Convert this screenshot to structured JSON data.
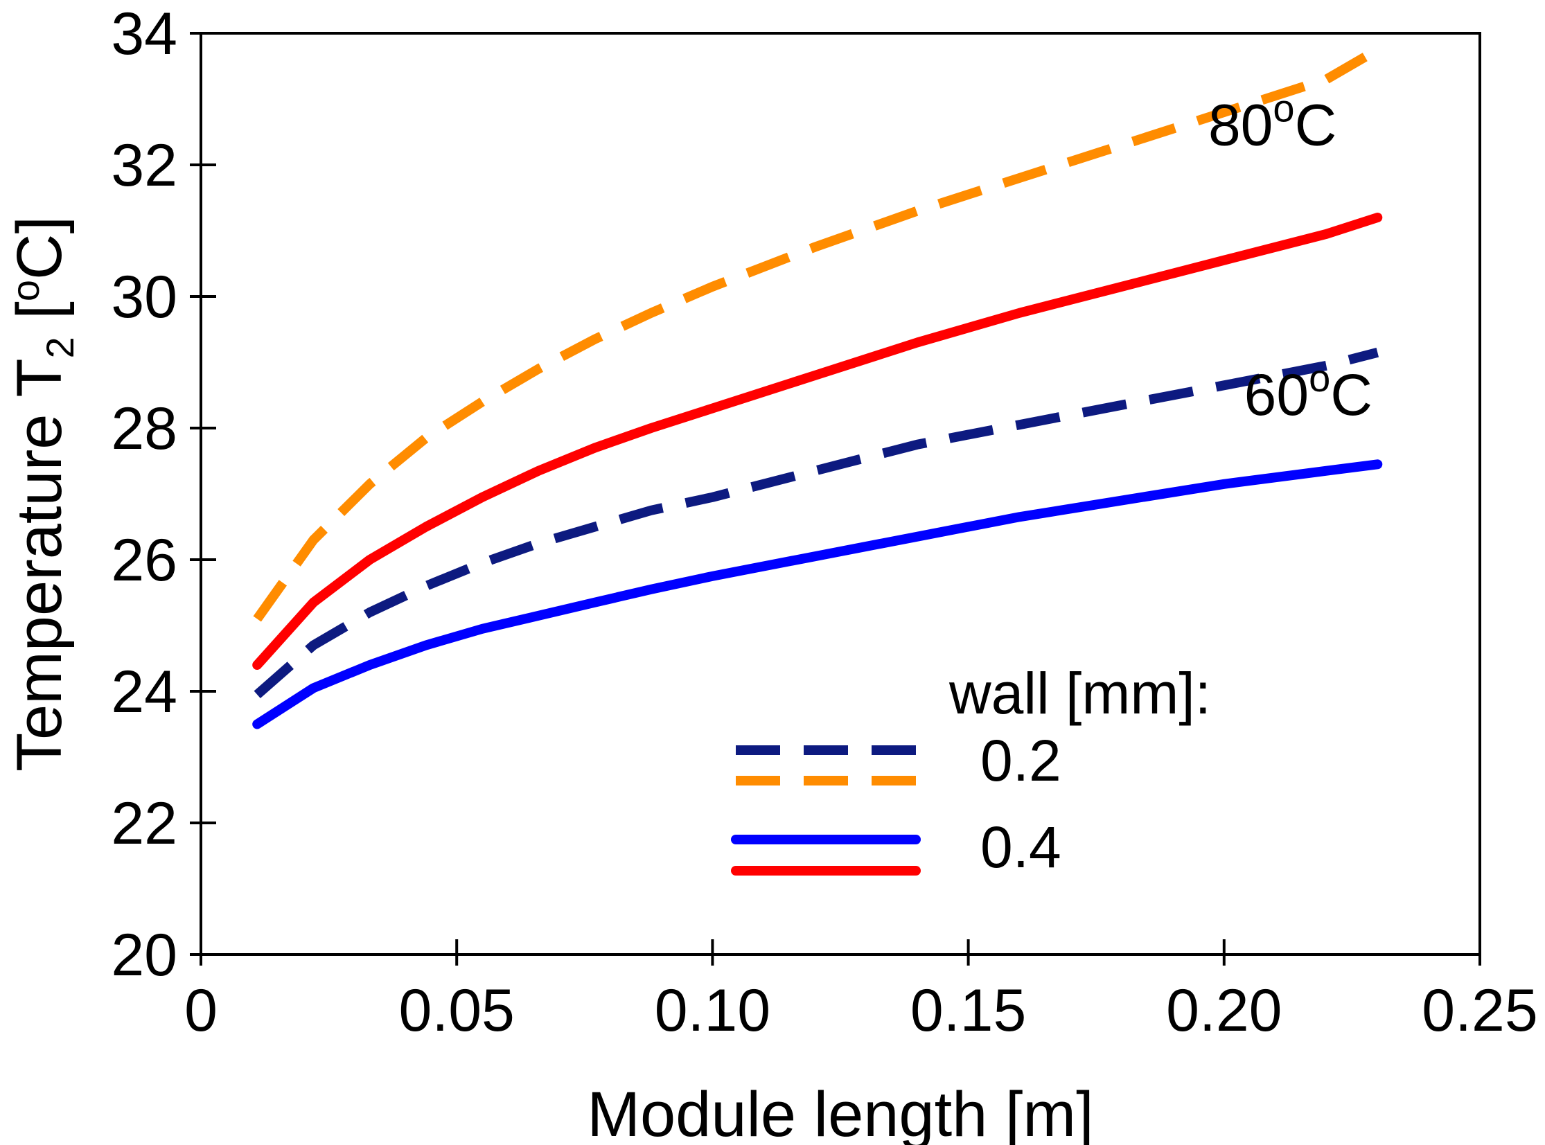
{
  "chart_data": {
    "type": "line",
    "xlabel": "Module length [m]",
    "ylabel_main": "Temperature T",
    "ylabel_sub": "2",
    "ylabel_unit_open": " [",
    "ylabel_unit_sup": "o",
    "ylabel_unit_close": "C]",
    "xlim": [
      0,
      0.25
    ],
    "ylim": [
      20,
      34
    ],
    "xticks": [
      0,
      0.05,
      0.1,
      0.15,
      0.2,
      0.25
    ],
    "xtick_labels": [
      "0",
      "0.05",
      "0.10",
      "0.15",
      "0.20",
      "0.25"
    ],
    "yticks": [
      20,
      22,
      24,
      26,
      28,
      30,
      32,
      34
    ],
    "ytick_labels": [
      "20",
      "22",
      "24",
      "26",
      "28",
      "30",
      "32",
      "34"
    ],
    "grid": false,
    "legend": {
      "placement": "bottom-center",
      "title": "wall [mm]:",
      "entries": [
        {
          "label": "0.2",
          "style": "dashed",
          "colors": [
            "#0d1a80",
            "#ff8c00"
          ]
        },
        {
          "label": "0.4",
          "style": "solid",
          "colors": [
            "#0000ff",
            "#ff0000"
          ]
        }
      ]
    },
    "annotations": [
      {
        "text_main": "80",
        "text_sup": "o",
        "text_end": "C",
        "x": 0.222,
        "y": 32.3
      },
      {
        "text_main": "60",
        "text_sup": "o",
        "text_end": "C",
        "x": 0.229,
        "y": 28.2
      }
    ],
    "series": [
      {
        "color": "#ff8c00",
        "style": "dashed",
        "x": [
          0.011,
          0.022,
          0.033,
          0.044,
          0.055,
          0.066,
          0.077,
          0.088,
          0.1,
          0.12,
          0.14,
          0.16,
          0.18,
          0.2,
          0.22,
          0.23
        ],
        "y": [
          25.1,
          26.3,
          27.15,
          27.85,
          28.4,
          28.9,
          29.35,
          29.75,
          30.15,
          30.75,
          31.3,
          31.8,
          32.3,
          32.8,
          33.3,
          33.75
        ]
      },
      {
        "color": "#ff0000",
        "style": "solid",
        "x": [
          0.011,
          0.022,
          0.033,
          0.044,
          0.055,
          0.066,
          0.077,
          0.088,
          0.1,
          0.12,
          0.14,
          0.16,
          0.18,
          0.2,
          0.22,
          0.23
        ],
        "y": [
          24.4,
          25.35,
          26.0,
          26.5,
          26.95,
          27.35,
          27.7,
          28.0,
          28.3,
          28.8,
          29.3,
          29.75,
          30.15,
          30.55,
          30.95,
          31.2
        ]
      },
      {
        "color": "#0d1a80",
        "style": "dashed",
        "x": [
          0.011,
          0.022,
          0.033,
          0.044,
          0.055,
          0.066,
          0.077,
          0.088,
          0.1,
          0.12,
          0.14,
          0.16,
          0.18,
          0.2,
          0.22,
          0.23
        ],
        "y": [
          23.95,
          24.7,
          25.2,
          25.6,
          25.95,
          26.25,
          26.5,
          26.75,
          26.95,
          27.35,
          27.75,
          28.05,
          28.35,
          28.65,
          28.95,
          29.15
        ]
      },
      {
        "color": "#0000ff",
        "style": "solid",
        "x": [
          0.011,
          0.022,
          0.033,
          0.044,
          0.055,
          0.066,
          0.077,
          0.088,
          0.1,
          0.12,
          0.14,
          0.16,
          0.18,
          0.2,
          0.22,
          0.23
        ],
        "y": [
          23.5,
          24.05,
          24.4,
          24.7,
          24.95,
          25.15,
          25.35,
          25.55,
          25.75,
          26.05,
          26.35,
          26.65,
          26.9,
          27.15,
          27.35,
          27.45
        ]
      }
    ]
  }
}
